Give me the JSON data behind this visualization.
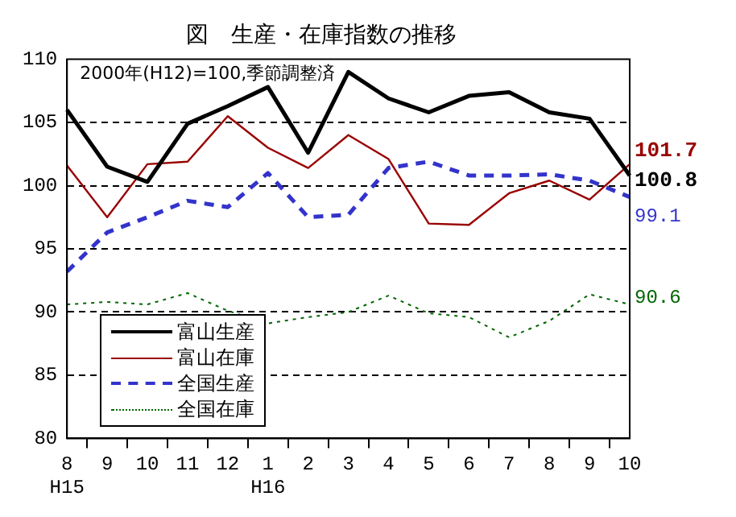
{
  "chart_data": {
    "type": "line",
    "title": "図　生産・在庫指数の推移",
    "annotations": [
      "2000年(H12)=100,季節調整済"
    ],
    "categories": [
      "8\nH15",
      "9",
      "10",
      "11",
      "12",
      "1\nH16",
      "2",
      "3",
      "4",
      "5",
      "6",
      "7",
      "8",
      "9",
      "10"
    ],
    "series": [
      {
        "name": "富山生産",
        "color": "#000000",
        "line_style": "solid",
        "values": [
          106.0,
          101.5,
          100.3,
          104.9,
          106.3,
          107.8,
          102.6,
          109.0,
          106.9,
          105.8,
          107.1,
          107.4,
          105.8,
          105.3,
          100.8
        ],
        "value_labels": [
          null,
          null,
          null,
          null,
          null,
          null,
          null,
          null,
          null,
          null,
          null,
          null,
          null,
          null,
          "100.8"
        ]
      },
      {
        "name": "富山在庫",
        "color": "#990000",
        "line_style": "solid",
        "values": [
          101.6,
          97.5,
          101.7,
          101.9,
          105.5,
          103.0,
          101.4,
          104.0,
          102.1,
          97.0,
          96.9,
          99.4,
          100.4,
          98.9,
          101.7
        ],
        "value_labels": [
          null,
          null,
          null,
          null,
          null,
          null,
          null,
          null,
          null,
          null,
          null,
          null,
          null,
          null,
          "101.7"
        ]
      },
      {
        "name": "全国生産",
        "color": "#3333cc",
        "line_style": "dashed",
        "values": [
          93.2,
          96.3,
          97.5,
          98.8,
          98.3,
          101.0,
          97.5,
          97.7,
          101.4,
          101.9,
          100.8,
          100.8,
          100.9,
          100.4,
          99.1
        ],
        "value_labels": [
          null,
          null,
          null,
          null,
          null,
          null,
          null,
          null,
          null,
          null,
          null,
          null,
          null,
          null,
          "99.1"
        ]
      },
      {
        "name": "全国在庫",
        "color": "#006600",
        "line_style": "dotted",
        "values": [
          90.6,
          90.8,
          90.6,
          91.5,
          90.1,
          89.1,
          89.6,
          90.0,
          91.3,
          89.9,
          89.6,
          88.0,
          89.3,
          91.4,
          90.6
        ],
        "value_labels": [
          null,
          null,
          null,
          null,
          null,
          null,
          null,
          null,
          null,
          null,
          null,
          null,
          null,
          null,
          "90.6"
        ]
      }
    ],
    "ylim": [
      80,
      110
    ],
    "yticks": [
      80,
      85,
      90,
      95,
      100,
      105,
      110
    ],
    "grid": "y",
    "legend": "bottom left",
    "marker": "none"
  }
}
